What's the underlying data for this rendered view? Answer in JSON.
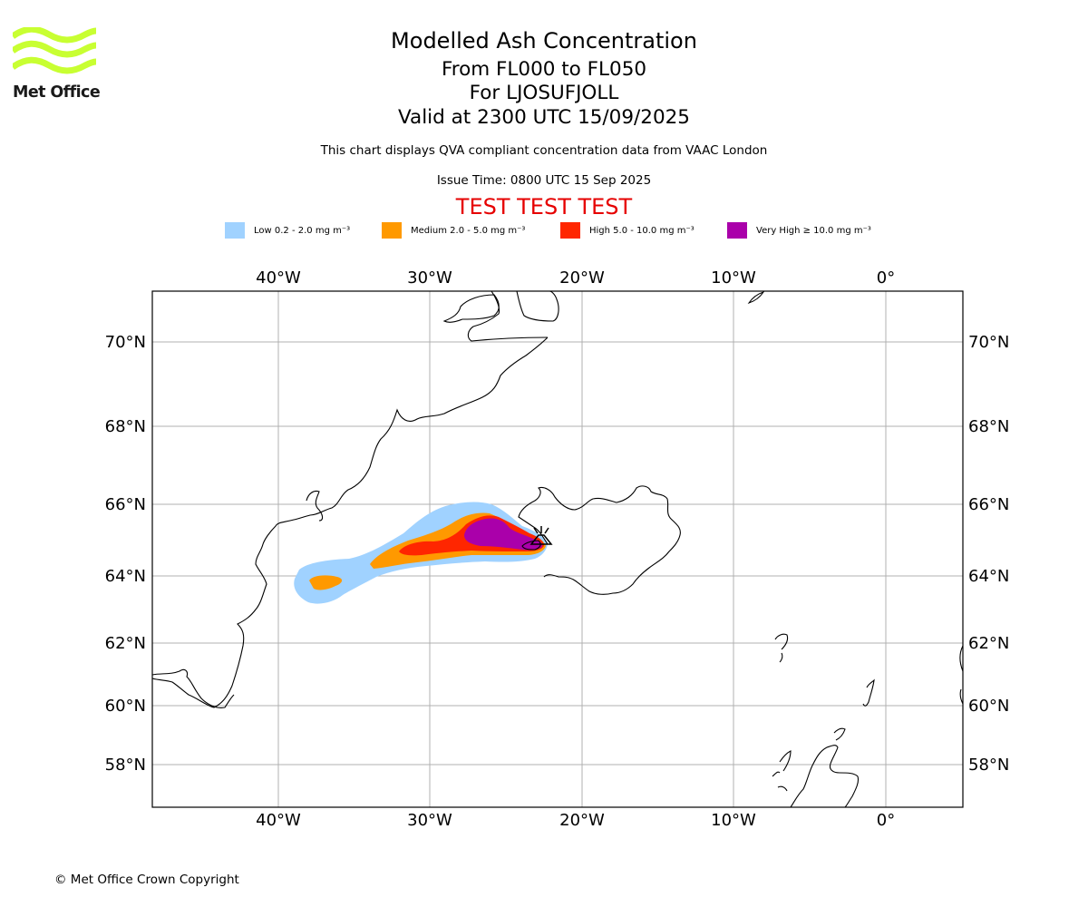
{
  "logo": {
    "brand_text": "Met Office",
    "accent_color": "#c8ff32"
  },
  "header": {
    "title": "Modelled Ash Concentration",
    "line2": "From FL000 to FL050",
    "line3": "For LJOSUFJOLL",
    "line4": "Valid at 2300 UTC 15/09/2025",
    "subtitle": "This chart displays QVA compliant concentration data from VAAC London",
    "issue_time": "Issue Time: 0800 UTC 15 Sep 2025",
    "test_banner": "TEST TEST TEST",
    "test_color": "#e60000"
  },
  "legend": [
    {
      "label": "Low 0.2 - 2.0 mg m⁻³",
      "color": "#a0d2ff"
    },
    {
      "label": "Medium 2.0 - 5.0 mg m⁻³",
      "color": "#ff9900"
    },
    {
      "label": "High 5.0 - 10.0 mg m⁻³",
      "color": "#ff2600"
    },
    {
      "label": "Very High  ≥  10.0 mg m⁻³",
      "color": "#aa00aa"
    }
  ],
  "map": {
    "lon_ticks": [
      "40°W",
      "30°W",
      "20°W",
      "10°W",
      "0°"
    ],
    "lat_ticks": [
      "70°N",
      "68°N",
      "66°N",
      "64°N",
      "62°N",
      "60°N",
      "58°N"
    ],
    "gridline_color": "#b0b0b0",
    "volcano_symbol": "volcano-icon"
  },
  "footer": {
    "copyright": "© Met Office Crown Copyright"
  }
}
